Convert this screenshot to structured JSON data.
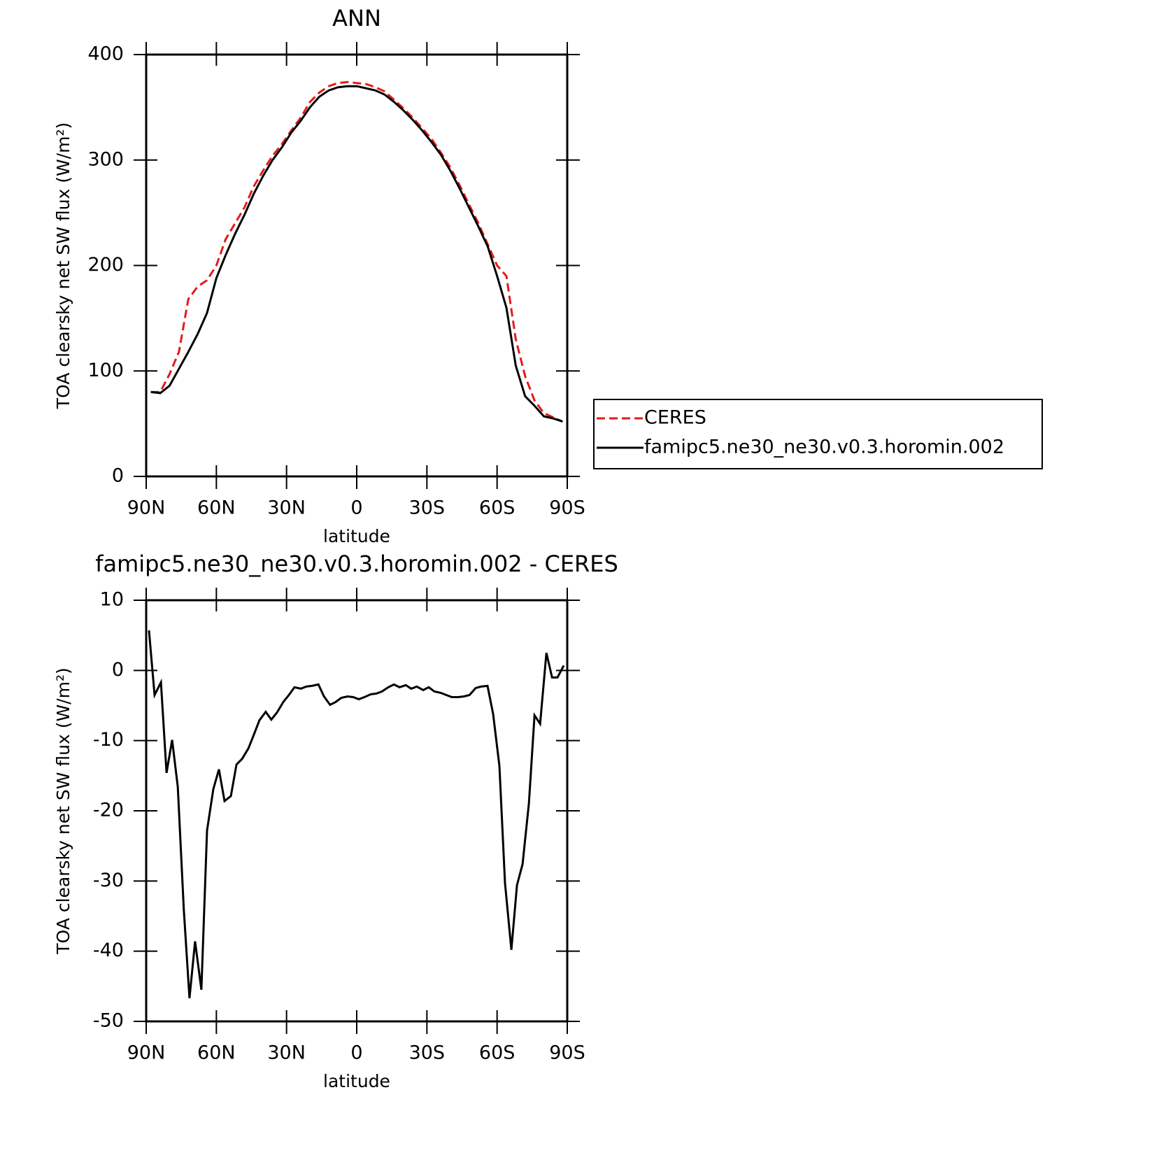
{
  "chart_data": [
    {
      "type": "line",
      "title": "ANN",
      "xlabel": "latitude",
      "ylabel": "TOA clearsky net SW flux (W/m²)",
      "x": [
        88,
        84,
        80,
        76,
        72,
        68,
        64,
        60,
        56,
        52,
        48,
        44,
        40,
        36,
        32,
        28,
        24,
        20,
        16,
        12,
        8,
        4,
        0,
        -4,
        -8,
        -12,
        -16,
        -20,
        -24,
        -28,
        -32,
        -36,
        -40,
        -44,
        -48,
        -52,
        -56,
        -60,
        -64,
        -68,
        -72,
        -76,
        -80,
        -84,
        -88
      ],
      "series": [
        {
          "name": "CERES",
          "color": "#e41a1c",
          "dash": true,
          "values": [
            80,
            80,
            97,
            118,
            168,
            180,
            186,
            200,
            225,
            240,
            255,
            275,
            290,
            304,
            315,
            328,
            340,
            355,
            364,
            370,
            373,
            374,
            373,
            372,
            369,
            365,
            357,
            349,
            340,
            330,
            320,
            307,
            293,
            276,
            258,
            240,
            220,
            200,
            190,
            130,
            95,
            72,
            60,
            56,
            52
          ]
        },
        {
          "name": "famipc5.ne30_ne30.v0.3.horomin.002",
          "color": "#000000",
          "dash": false,
          "values": [
            80,
            79,
            86,
            102,
            118,
            135,
            155,
            188,
            210,
            230,
            248,
            268,
            285,
            300,
            312,
            326,
            337,
            350,
            360,
            366,
            369,
            370,
            370,
            368,
            366,
            362,
            355,
            347,
            338,
            328,
            317,
            305,
            290,
            273,
            255,
            237,
            218,
            190,
            160,
            105,
            76,
            67,
            57,
            55,
            52
          ]
        }
      ],
      "xlim": [
        90,
        -90
      ],
      "xticks": [
        {
          "value": 90,
          "label": "90N"
        },
        {
          "value": 60,
          "label": "60N"
        },
        {
          "value": 30,
          "label": "30N"
        },
        0,
        {
          "value": -30,
          "label": "30S"
        },
        {
          "value": -60,
          "label": "60S"
        },
        {
          "value": -90,
          "label": "90S"
        }
      ],
      "ylim": [
        0,
        400
      ],
      "yticks": [
        0,
        100,
        200,
        300,
        400
      ],
      "legend": "right"
    },
    {
      "type": "line",
      "title": "famipc5.ne30_ne30.v0.3.horomin.002 - CERES",
      "xlabel": "latitude",
      "ylabel": "TOA clearsky net SW flux (W/m²)",
      "x": [
        88.8,
        86.4,
        83.7,
        81.3,
        78.9,
        76.5,
        73.9,
        71.5,
        69.1,
        66.4,
        64.0,
        61.3,
        58.9,
        56.5,
        53.8,
        51.4,
        49.0,
        46.3,
        43.9,
        41.6,
        38.9,
        36.5,
        34.1,
        31.4,
        29.0,
        26.6,
        23.9,
        21.5,
        19.1,
        16.4,
        14.0,
        11.4,
        9.0,
        6.6,
        3.9,
        1.5,
        -0.9,
        -3.3,
        -6.0,
        -8.4,
        -10.8,
        -13.5,
        -15.9,
        -18.3,
        -21.0,
        -23.3,
        -25.7,
        -28.4,
        -30.8,
        -33.2,
        -35.9,
        -38.3,
        -40.7,
        -43.4,
        -45.8,
        -48.2,
        -50.9,
        -53.2,
        -55.9,
        -58.3,
        -61.0,
        -63.4,
        -66.1,
        -68.5,
        -70.9,
        -73.6,
        -76.0,
        -78.4,
        -81.1,
        -83.5,
        -85.8,
        -88.5
      ],
      "values": [
        5.7,
        -3.5,
        -1.7,
        -14.6,
        -9.9,
        -16.6,
        -34.1,
        -46.7,
        -38.6,
        -45.5,
        -22.8,
        -16.9,
        -14.1,
        -18.6,
        -17.9,
        -13.4,
        -12.6,
        -11.1,
        -9.1,
        -7.1,
        -5.9,
        -7.0,
        -6.0,
        -4.5,
        -3.5,
        -2.4,
        -2.6,
        -2.3,
        -2.2,
        -2.0,
        -3.7,
        -4.9,
        -4.5,
        -3.9,
        -3.7,
        -3.8,
        -4.1,
        -3.8,
        -3.4,
        -3.3,
        -3.0,
        -2.4,
        -2.0,
        -2.4,
        -2.1,
        -2.6,
        -2.3,
        -2.8,
        -2.4,
        -3.0,
        -3.2,
        -3.5,
        -3.8,
        -3.8,
        -3.7,
        -3.5,
        -2.5,
        -2.3,
        -2.2,
        -6.2,
        -13.6,
        -30.3,
        -39.8,
        -30.6,
        -27.6,
        -18.9,
        -6.4,
        -7.6,
        2.5,
        -1.0,
        -1.0,
        0.7
      ],
      "color": "#000000",
      "xlim": [
        90,
        -90
      ],
      "xticks": [
        {
          "value": 90,
          "label": "90N"
        },
        {
          "value": 60,
          "label": "60N"
        },
        {
          "value": 30,
          "label": "30N"
        },
        0,
        {
          "value": -30,
          "label": "30S"
        },
        {
          "value": -60,
          "label": "60S"
        },
        {
          "value": -90,
          "label": "90S"
        }
      ],
      "ylim": [
        -50,
        10
      ],
      "yticks": [
        -50,
        -40,
        -30,
        -20,
        -10,
        0,
        10
      ]
    }
  ]
}
